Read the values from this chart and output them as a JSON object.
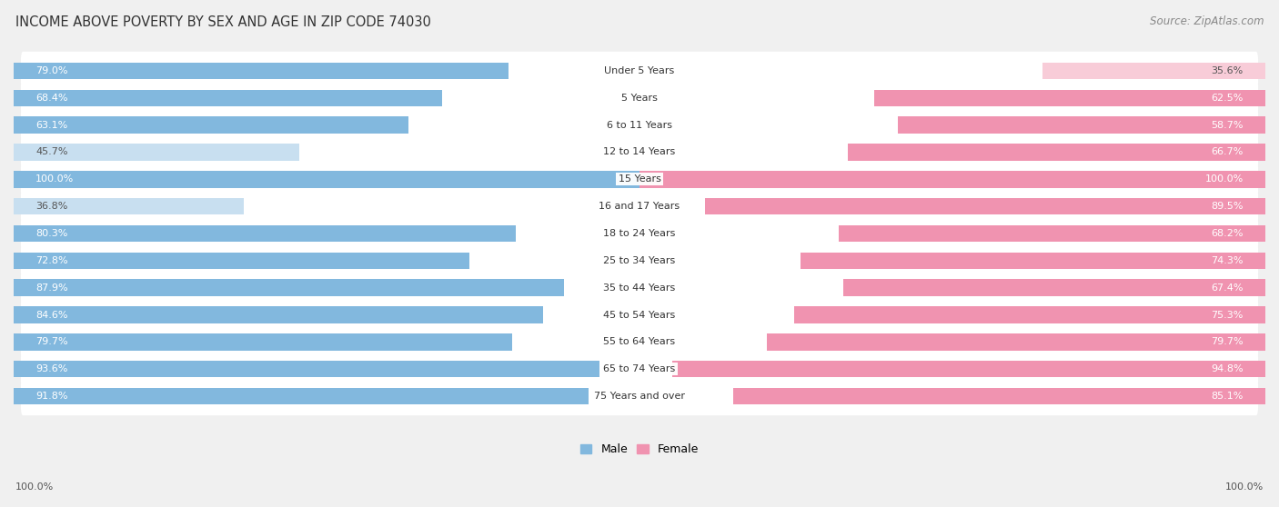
{
  "title": "INCOME ABOVE POVERTY BY SEX AND AGE IN ZIP CODE 74030",
  "source": "Source: ZipAtlas.com",
  "categories": [
    "Under 5 Years",
    "5 Years",
    "6 to 11 Years",
    "12 to 14 Years",
    "15 Years",
    "16 and 17 Years",
    "18 to 24 Years",
    "25 to 34 Years",
    "35 to 44 Years",
    "45 to 54 Years",
    "55 to 64 Years",
    "65 to 74 Years",
    "75 Years and over"
  ],
  "male_values": [
    79.0,
    68.4,
    63.1,
    45.7,
    100.0,
    36.8,
    80.3,
    72.8,
    87.9,
    84.6,
    79.7,
    93.6,
    91.8
  ],
  "female_values": [
    35.6,
    62.5,
    58.7,
    66.7,
    100.0,
    89.5,
    68.2,
    74.3,
    67.4,
    75.3,
    79.7,
    94.8,
    85.1
  ],
  "male_color": "#82b8de",
  "female_color": "#f093b0",
  "male_light_color": "#c8dff0",
  "female_light_color": "#f8ccd8",
  "background_color": "#f0f0f0",
  "bar_background": "#ffffff",
  "row_bg_odd": "#f8f8f8",
  "title_fontsize": 10.5,
  "source_fontsize": 8.5,
  "label_fontsize": 8.0,
  "bar_height": 0.62,
  "max_value": 100.0,
  "bottom_label": "100.0%"
}
